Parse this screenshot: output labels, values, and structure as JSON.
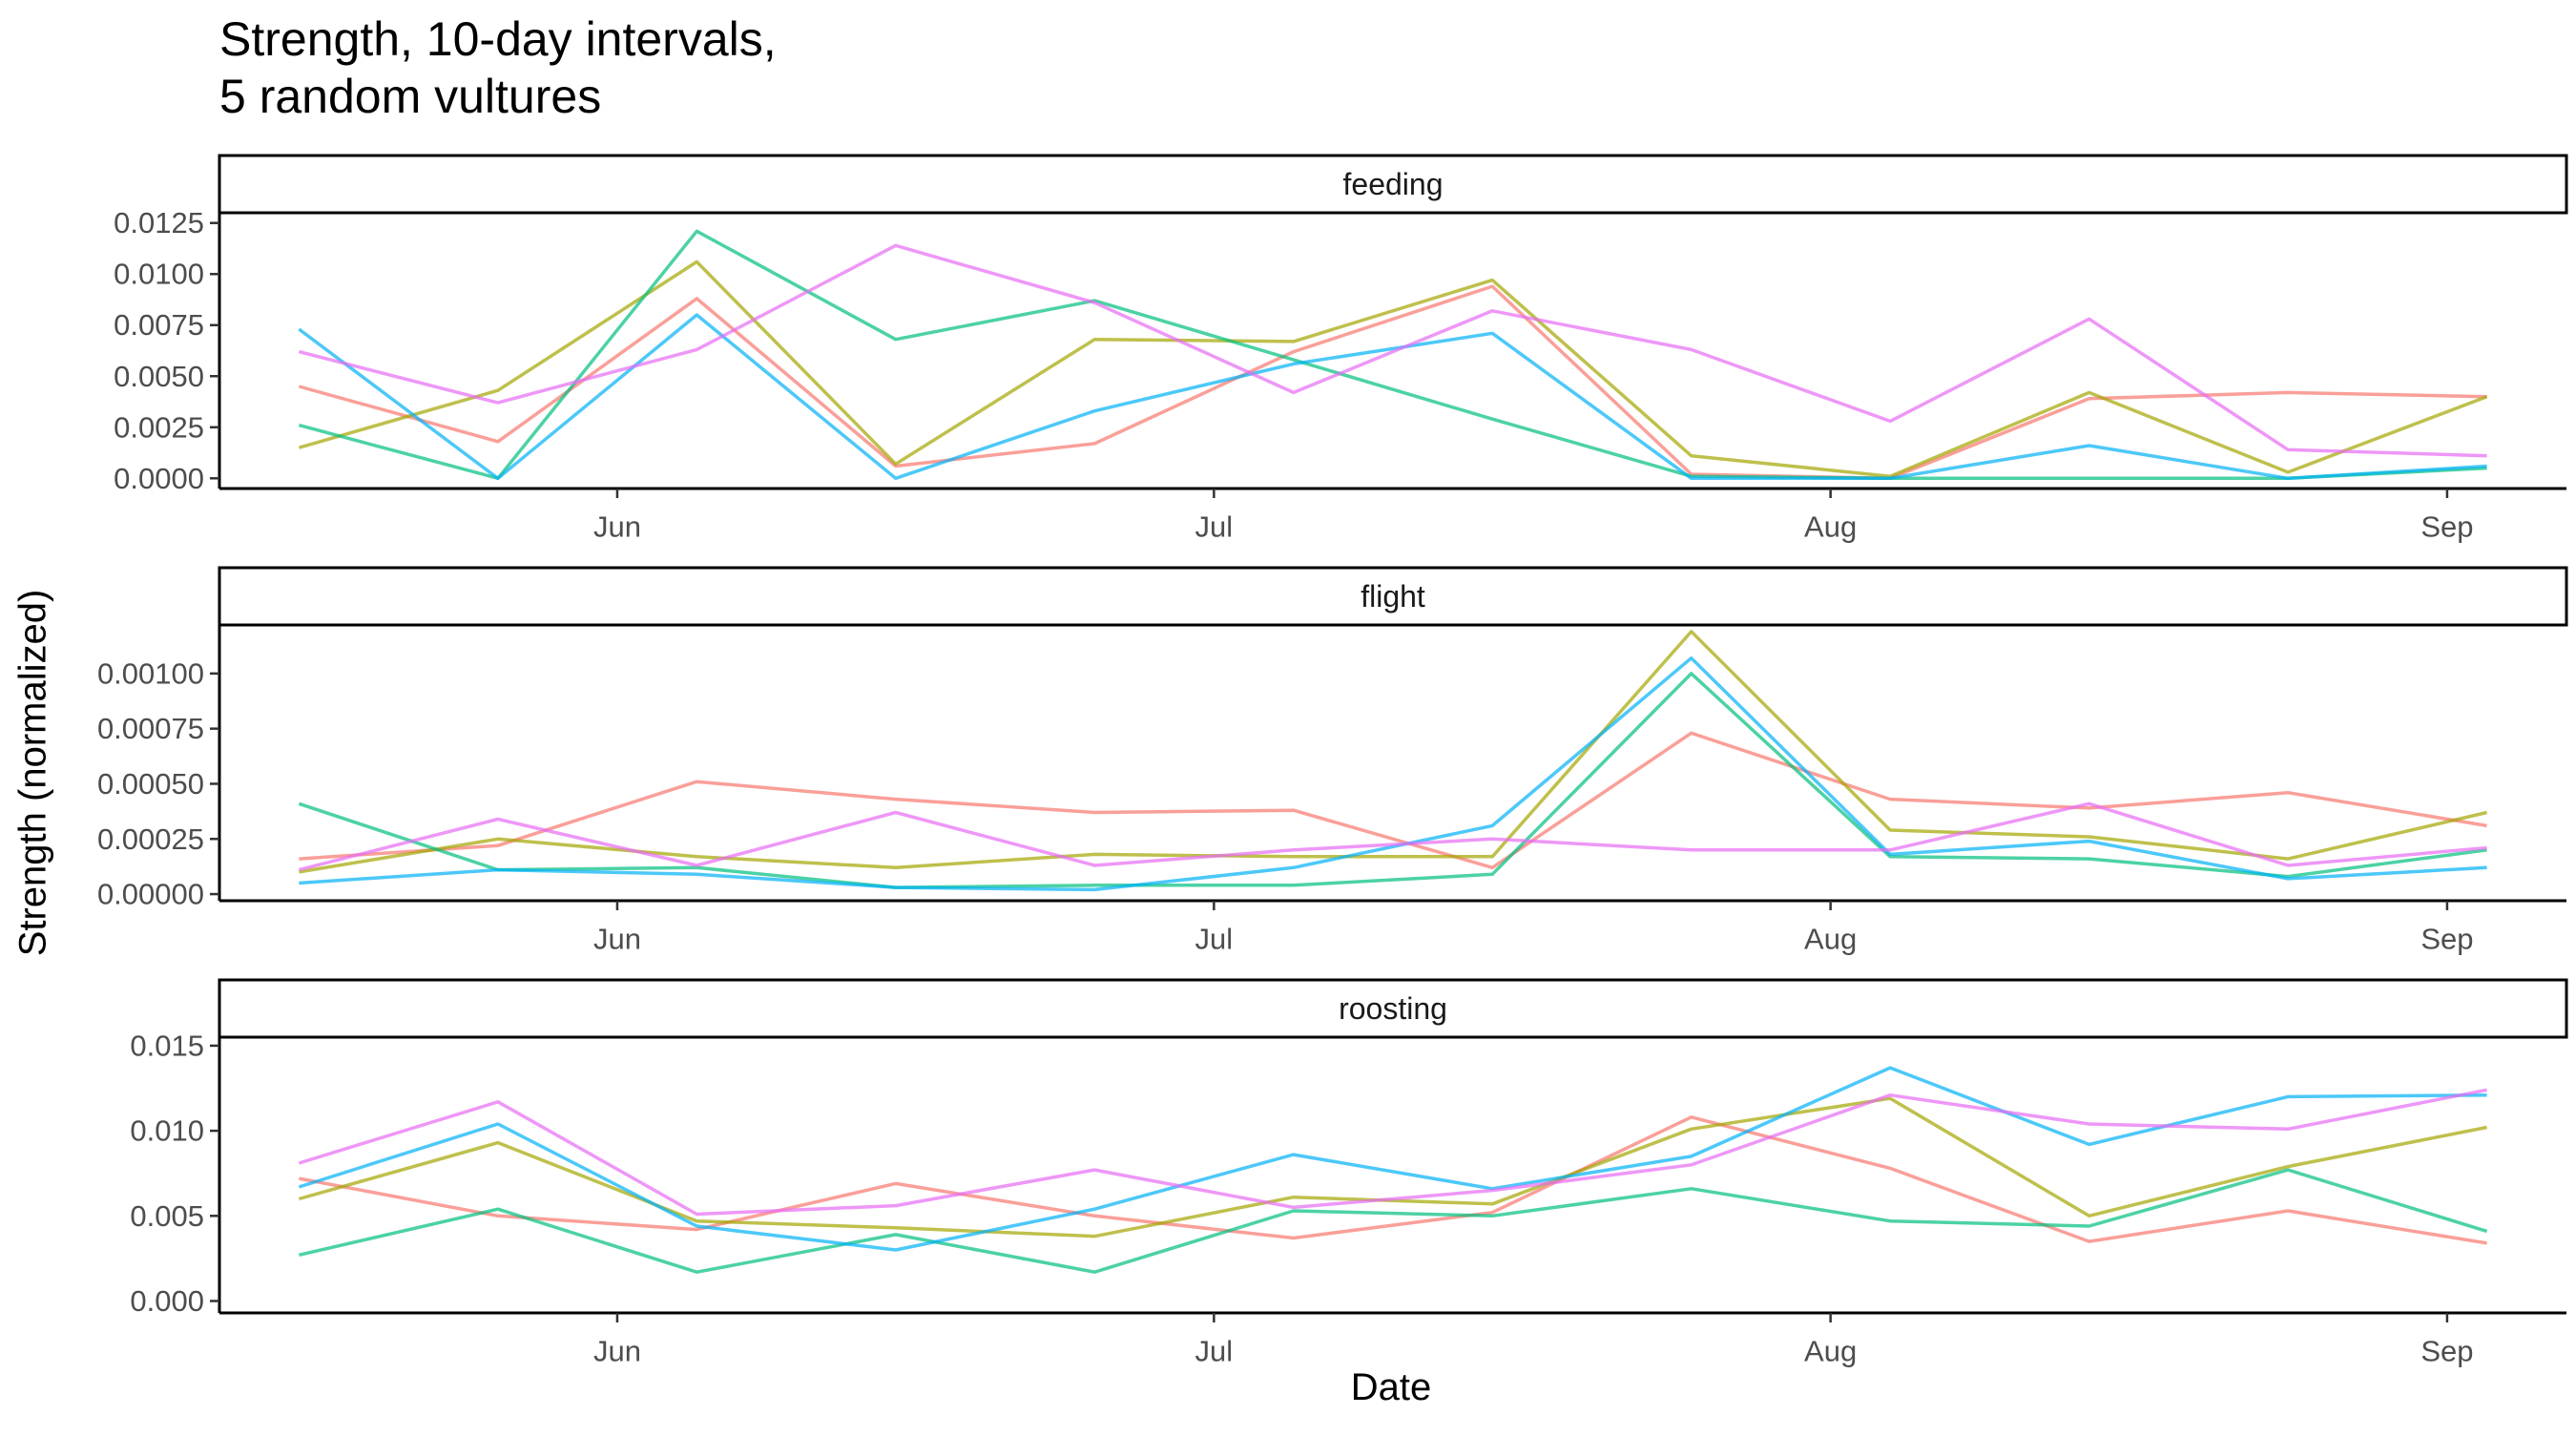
{
  "chart_data": {
    "type": "line",
    "title_lines": [
      "Strength, 10-day intervals,",
      "5 random vultures"
    ],
    "xlabel": "Date",
    "ylabel": "Strength (normalized)",
    "x": [
      "2021-05-16",
      "2021-05-26",
      "2021-06-05",
      "2021-06-15",
      "2021-06-25",
      "2021-07-05",
      "2021-07-15",
      "2021-07-25",
      "2021-08-04",
      "2021-08-14",
      "2021-08-24",
      "2021-09-03"
    ],
    "x_ticks": [
      {
        "date": "2021-06-01",
        "label": "Jun"
      },
      {
        "date": "2021-07-01",
        "label": "Jul"
      },
      {
        "date": "2021-08-01",
        "label": "Aug"
      },
      {
        "date": "2021-09-01",
        "label": "Sep"
      }
    ],
    "x_range": [
      "2021-05-12",
      "2021-09-07"
    ],
    "colors": [
      "#F8766D",
      "#A3A500",
      "#00BF7D",
      "#00B0F6",
      "#E76BF3"
    ],
    "line_opacity": 0.7,
    "grid": false,
    "legend": "none",
    "panels": [
      {
        "strip": "feeding",
        "ylim": [
          -0.0005,
          0.013
        ],
        "y_ticks": [
          0,
          0.0025,
          0.005,
          0.0075,
          0.01,
          0.0125
        ],
        "y_tick_labels": [
          "0.0000",
          "0.0025",
          "0.0050",
          "0.0075",
          "0.0100",
          "0.0125"
        ],
        "series": [
          {
            "values": [
              0.0045,
              0.0018,
              0.0088,
              0.0006,
              0.0017,
              0.0062,
              0.0094,
              0.0002,
              0.0,
              0.0039,
              0.0042,
              0.004
            ]
          },
          {
            "values": [
              0.0015,
              0.0043,
              0.0106,
              0.0007,
              0.0068,
              0.0067,
              0.0097,
              0.0011,
              0.0001,
              0.0042,
              0.0003,
              0.004
            ]
          },
          {
            "values": [
              0.0026,
              0.0,
              0.0121,
              0.0068,
              0.0087,
              0.0058,
              0.0029,
              0.0001,
              0.0,
              0.0,
              0.0,
              0.0005
            ]
          },
          {
            "values": [
              0.0073,
              0.0,
              0.008,
              0.0,
              0.0033,
              0.0056,
              0.0071,
              0.0,
              0.0,
              0.0016,
              0.0,
              0.0006
            ]
          },
          {
            "values": [
              0.0062,
              0.0037,
              0.0063,
              0.0114,
              0.0086,
              0.0042,
              0.0082,
              0.0063,
              0.0028,
              0.0078,
              0.0014,
              0.0011
            ]
          }
        ]
      },
      {
        "strip": "flight",
        "ylim": [
          -3e-05,
          0.00122
        ],
        "y_ticks": [
          0,
          0.00025,
          0.0005,
          0.00075,
          0.001
        ],
        "y_tick_labels": [
          "0.00000",
          "0.00025",
          "0.00050",
          "0.00075",
          "0.00100"
        ],
        "series": [
          {
            "values": [
              0.00016,
              0.00022,
              0.00051,
              0.00043,
              0.00037,
              0.00038,
              0.00012,
              0.00073,
              0.00043,
              0.00039,
              0.00046,
              0.00031
            ]
          },
          {
            "values": [
              0.0001,
              0.00025,
              0.00017,
              0.00012,
              0.00018,
              0.00017,
              0.00017,
              0.00119,
              0.00029,
              0.00026,
              0.00016,
              0.00037
            ]
          },
          {
            "values": [
              0.00041,
              0.00011,
              0.00012,
              3e-05,
              4e-05,
              4e-05,
              9e-05,
              0.001,
              0.00017,
              0.00016,
              8e-05,
              0.0002
            ]
          },
          {
            "values": [
              5e-05,
              0.00011,
              9e-05,
              3e-05,
              2e-05,
              0.00012,
              0.00031,
              0.00107,
              0.00018,
              0.00024,
              7e-05,
              0.00012
            ]
          },
          {
            "values": [
              0.00011,
              0.00034,
              0.00013,
              0.00037,
              0.00013,
              0.0002,
              0.00025,
              0.0002,
              0.0002,
              0.00041,
              0.00013,
              0.00021
            ]
          }
        ]
      },
      {
        "strip": "roosting",
        "ylim": [
          -0.0007,
          0.0155
        ],
        "y_ticks": [
          0,
          0.005,
          0.01,
          0.015
        ],
        "y_tick_labels": [
          "0.000",
          "0.005",
          "0.010",
          "0.015"
        ],
        "series": [
          {
            "values": [
              0.0072,
              0.005,
              0.0042,
              0.0069,
              0.005,
              0.0037,
              0.0052,
              0.0108,
              0.0078,
              0.0035,
              0.0053,
              0.0034
            ]
          },
          {
            "values": [
              0.006,
              0.0093,
              0.0047,
              0.0043,
              0.0038,
              0.0061,
              0.0057,
              0.0101,
              0.0119,
              0.005,
              0.0079,
              0.0102
            ]
          },
          {
            "values": [
              0.0027,
              0.0054,
              0.0017,
              0.0039,
              0.0017,
              0.0053,
              0.005,
              0.0066,
              0.0047,
              0.0044,
              0.0077,
              0.0041
            ]
          },
          {
            "values": [
              0.0067,
              0.0104,
              0.0044,
              0.003,
              0.0054,
              0.0086,
              0.0066,
              0.0085,
              0.0137,
              0.0092,
              0.012,
              0.0121
            ]
          },
          {
            "values": [
              0.0081,
              0.0117,
              0.0051,
              0.0056,
              0.0077,
              0.0055,
              0.0065,
              0.008,
              0.0121,
              0.0104,
              0.0101,
              0.0124
            ]
          }
        ]
      }
    ]
  }
}
